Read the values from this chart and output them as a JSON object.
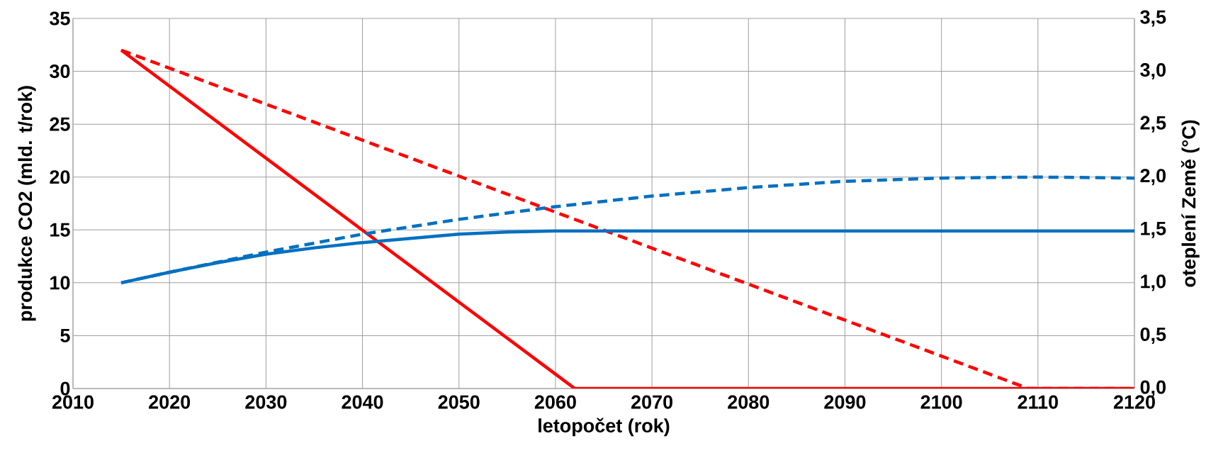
{
  "chart_data": {
    "type": "line",
    "xlabel": "letopočet (rok)",
    "ylabel": "produkce CO2 (mld. t/rok)",
    "y2label": "oteplení Země (°C)",
    "xlim": [
      2010,
      2120
    ],
    "xticks": [
      2010,
      2020,
      2030,
      2040,
      2050,
      2060,
      2070,
      2080,
      2090,
      2100,
      2110,
      2120
    ],
    "ylim": [
      0,
      35
    ],
    "yticks": [
      0,
      5,
      10,
      15,
      20,
      25,
      30,
      35
    ],
    "y2lim": [
      0,
      3.5
    ],
    "y2ticks": [
      {
        "value": 0,
        "label": "0,0"
      },
      {
        "value": 0.5,
        "label": "0,5"
      },
      {
        "value": 1,
        "label": "1,0"
      },
      {
        "value": 1.5,
        "label": "1,5"
      },
      {
        "value": 2,
        "label": "2,0"
      },
      {
        "value": 2.5,
        "label": "2,5"
      },
      {
        "value": 3,
        "label": "3,0"
      },
      {
        "value": 3.5,
        "label": "3,5"
      }
    ],
    "grid": true,
    "series": [
      {
        "color": "#ff0000",
        "line_style": "solid",
        "x": [
          2015,
          2062,
          2120
        ],
        "values": [
          32,
          0,
          0
        ]
      },
      {
        "color": "#ff0000",
        "line_style": "dashed",
        "x": [
          2015,
          2109,
          2120
        ],
        "values": [
          32,
          0,
          0
        ]
      },
      {
        "color": "#0070c0",
        "line_style": "solid",
        "axis": "y2",
        "x": [
          2015,
          2020,
          2025,
          2030,
          2035,
          2040,
          2045,
          2050,
          2055,
          2060,
          2070,
          2120
        ],
        "values": [
          1.0,
          1.1,
          1.19,
          1.27,
          1.33,
          1.38,
          1.42,
          1.46,
          1.48,
          1.49,
          1.49,
          1.49
        ]
      },
      {
        "color": "#0070c0",
        "line_style": "dashed",
        "axis": "y2",
        "x": [
          2015,
          2020,
          2030,
          2040,
          2050,
          2060,
          2070,
          2080,
          2090,
          2100,
          2110,
          2120
        ],
        "values": [
          1.0,
          1.1,
          1.29,
          1.46,
          1.6,
          1.72,
          1.82,
          1.9,
          1.96,
          1.99,
          2.0,
          1.99
        ]
      }
    ]
  }
}
